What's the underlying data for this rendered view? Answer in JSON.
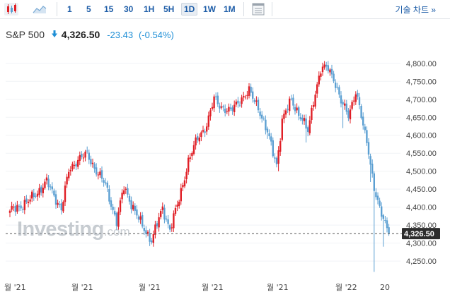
{
  "toolbar": {
    "chart_type_icons": [
      "candlestick-icon",
      "area-chart-icon"
    ],
    "intervals": [
      "1",
      "5",
      "15",
      "30",
      "1H",
      "5H",
      "1D",
      "1W",
      "1M"
    ],
    "active_interval": "1D",
    "settings_icon": "chart-settings-icon",
    "tech_chart_link": "기술 차트 »"
  },
  "header": {
    "symbol": "S&P 500",
    "direction_icon": "down-arrow-icon",
    "price": "4,326.50",
    "change": "-23.43",
    "change_pct": "(-0.54%)"
  },
  "watermark": {
    "main": "Investing",
    "domain": ".com"
  },
  "colors": {
    "up": "#e01f26",
    "down": "#5b9fd2",
    "price_line": "#555555",
    "price_tag_bg": "#2d2d2d",
    "axis_text": "#444444",
    "grid": "#f1f3f6",
    "link": "#1f5ea8"
  },
  "chart_data": {
    "type": "candlestick",
    "x_labels": [
      "월 '21",
      "월 '21",
      "월 '21",
      "월 '21",
      "월 '21",
      "월 '22",
      "20"
    ],
    "y_ticks": [
      4250,
      4300,
      4350,
      4400,
      4450,
      4500,
      4550,
      4600,
      4650,
      4700,
      4750,
      4800
    ],
    "y_tick_labels": [
      "4,250.00",
      "4,300.00",
      "4,350.00",
      "4,400.00",
      "4,450.00",
      "4,500.00",
      "4,550.00",
      "4,600.00",
      "4,650.00",
      "4,700.00",
      "4,750.00",
      "4,800.00"
    ],
    "ylim": [
      4205,
      4835
    ],
    "last_price": 4326.5,
    "last_price_label": "4,326.50",
    "keypoints": [
      [
        0,
        4390
      ],
      [
        10,
        4415
      ],
      [
        20,
        4470
      ],
      [
        28,
        4395
      ],
      [
        32,
        4500
      ],
      [
        37,
        4535
      ],
      [
        42,
        4545
      ],
      [
        52,
        4460
      ],
      [
        58,
        4360
      ],
      [
        62,
        4455
      ],
      [
        67,
        4400
      ],
      [
        72,
        4345
      ],
      [
        77,
        4310
      ],
      [
        83,
        4395
      ],
      [
        87,
        4340
      ],
      [
        92,
        4420
      ],
      [
        97,
        4530
      ],
      [
        102,
        4590
      ],
      [
        107,
        4630
      ],
      [
        111,
        4700
      ],
      [
        115,
        4680
      ],
      [
        120,
        4665
      ],
      [
        125,
        4700
      ],
      [
        130,
        4720
      ],
      [
        135,
        4680
      ],
      [
        140,
        4605
      ],
      [
        145,
        4520
      ],
      [
        148,
        4640
      ],
      [
        153,
        4700
      ],
      [
        157,
        4660
      ],
      [
        162,
        4610
      ],
      [
        165,
        4700
      ],
      [
        169,
        4780
      ],
      [
        173,
        4790
      ],
      [
        176,
        4760
      ],
      [
        180,
        4690
      ],
      [
        184,
        4660
      ],
      [
        188,
        4720
      ],
      [
        191,
        4650
      ],
      [
        195,
        4560
      ],
      [
        198,
        4450
      ],
      [
        201,
        4390
      ],
      [
        204,
        4360
      ],
      [
        206,
        4326.5
      ]
    ],
    "shocks": {
      "140": 4590,
      "146": 4500,
      "161": 4580,
      "181": 4620,
      "196": 4470,
      "198": 4220,
      "203": 4290
    }
  }
}
